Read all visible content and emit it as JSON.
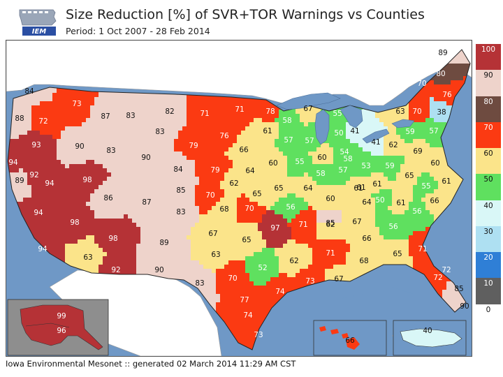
{
  "header": {
    "logo_text": "IEM",
    "title": "Size Reduction [%] of SVR+TOR Warnings vs Counties",
    "subtitle": "Period: 1 Oct 2007 - 28 Feb 2014"
  },
  "footer": {
    "credit": "Iowa Environmental Mesonet :: generated 02 March 2014 11:29 AM CST"
  },
  "colors": {
    "ocean": "#6f98c6",
    "land_outside": "#ffffff",
    "bin_0_10": "#ffffff",
    "bin_10_20": "#5f5f5f",
    "bin_20_30": "#2f7fd6",
    "bin_30_40": "#aee0f2",
    "bin_40_50": "#d9f7f7",
    "bin_50_60": "#5fe05f",
    "bin_60_70": "#fbe48a",
    "bin_70_80": "#fb3a12",
    "bin_80_90": "#6e4b40",
    "bin_90_100": "#eed3cb",
    "bin_over": "#b53236"
  },
  "legend": {
    "labels": [
      "100",
      "90",
      "80",
      "70",
      "60",
      "50",
      "40",
      "30",
      "20",
      "10",
      "0"
    ],
    "colors": [
      "#b53236",
      "#eed3cb",
      "#6e4b40",
      "#fb3a12",
      "#fbe48a",
      "#5fe05f",
      "#d9f7f7",
      "#aee0f2",
      "#2f7fd6",
      "#5f5f5f",
      "#ffffff"
    ]
  },
  "offices": [
    {
      "value": "89"
    },
    {
      "value": "80"
    },
    {
      "value": "70"
    },
    {
      "value": "76"
    },
    {
      "value": "38"
    },
    {
      "value": "63"
    },
    {
      "value": "70"
    },
    {
      "value": "57"
    },
    {
      "value": "59"
    },
    {
      "value": "69"
    },
    {
      "value": "62"
    },
    {
      "value": "41"
    },
    {
      "value": "59"
    },
    {
      "value": "60"
    },
    {
      "value": "65"
    },
    {
      "value": "61"
    },
    {
      "value": "55"
    },
    {
      "value": "66"
    },
    {
      "value": "61"
    },
    {
      "value": "56"
    },
    {
      "value": "50"
    },
    {
      "value": "61"
    },
    {
      "value": "61"
    },
    {
      "value": "56"
    },
    {
      "value": "71"
    },
    {
      "value": "65"
    },
    {
      "value": "72"
    },
    {
      "value": "72"
    },
    {
      "value": "85"
    },
    {
      "value": "90"
    },
    {
      "value": "84"
    },
    {
      "value": "73"
    },
    {
      "value": "88"
    },
    {
      "value": "72"
    },
    {
      "value": "87"
    },
    {
      "value": "83"
    },
    {
      "value": "82"
    },
    {
      "value": "71"
    },
    {
      "value": "71"
    },
    {
      "value": "78"
    },
    {
      "value": "67"
    },
    {
      "value": "55"
    },
    {
      "value": "58"
    },
    {
      "value": "50"
    },
    {
      "value": "41"
    },
    {
      "value": "93"
    },
    {
      "value": "90"
    },
    {
      "value": "83"
    },
    {
      "value": "83"
    },
    {
      "value": "90"
    },
    {
      "value": "76"
    },
    {
      "value": "61"
    },
    {
      "value": "57"
    },
    {
      "value": "57"
    },
    {
      "value": "54"
    },
    {
      "value": "79"
    },
    {
      "value": "66"
    },
    {
      "value": "94"
    },
    {
      "value": "92"
    },
    {
      "value": "94"
    },
    {
      "value": "98"
    },
    {
      "value": "84"
    },
    {
      "value": "79"
    },
    {
      "value": "64"
    },
    {
      "value": "60"
    },
    {
      "value": "55"
    },
    {
      "value": "60"
    },
    {
      "value": "58"
    },
    {
      "value": "58"
    },
    {
      "value": "57"
    },
    {
      "value": "53"
    },
    {
      "value": "89"
    },
    {
      "value": "86"
    },
    {
      "value": "85"
    },
    {
      "value": "70"
    },
    {
      "value": "62"
    },
    {
      "value": "65"
    },
    {
      "value": "65"
    },
    {
      "value": "64"
    },
    {
      "value": "60"
    },
    {
      "value": "61"
    },
    {
      "value": "64"
    },
    {
      "value": "94"
    },
    {
      "value": "87"
    },
    {
      "value": "83"
    },
    {
      "value": "68"
    },
    {
      "value": "70"
    },
    {
      "value": "56"
    },
    {
      "value": "85"
    },
    {
      "value": "98"
    },
    {
      "value": "67"
    },
    {
      "value": "71"
    },
    {
      "value": "62"
    },
    {
      "value": "67"
    },
    {
      "value": "66"
    },
    {
      "value": "98"
    },
    {
      "value": "89"
    },
    {
      "value": "65"
    },
    {
      "value": "97"
    },
    {
      "value": "94"
    },
    {
      "value": "63"
    },
    {
      "value": "63"
    },
    {
      "value": "62"
    },
    {
      "value": "71"
    },
    {
      "value": "68"
    },
    {
      "value": "92"
    },
    {
      "value": "90"
    },
    {
      "value": "52"
    },
    {
      "value": "70"
    },
    {
      "value": "73"
    },
    {
      "value": "67"
    },
    {
      "value": "83"
    },
    {
      "value": "74"
    },
    {
      "value": "77"
    },
    {
      "value": "74"
    },
    {
      "value": "73"
    },
    {
      "value": "99"
    },
    {
      "value": "96"
    },
    {
      "value": "66"
    },
    {
      "value": "40"
    }
  ]
}
